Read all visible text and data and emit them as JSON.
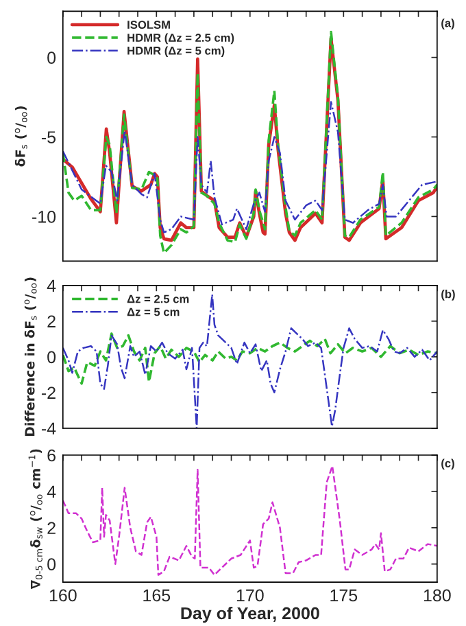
{
  "chart_data": [
    {
      "type": "line",
      "ylabel": "δF$_{s}$ ($^{o}$/$_{oo}$)",
      "annotations": [
        "(a)"
      ],
      "xlim": [
        160,
        180
      ],
      "ylim": [
        -12.8,
        2.9
      ],
      "xticks": [
        160,
        {
          "value": 161,
          "label": null
        },
        {
          "value": 162,
          "label": null
        },
        {
          "value": 163,
          "label": null
        },
        {
          "value": 164,
          "label": null
        },
        165,
        {
          "value": 166,
          "label": null
        },
        {
          "value": 167,
          "label": null
        },
        {
          "value": 168,
          "label": null
        },
        {
          "value": 169,
          "label": null
        },
        170,
        {
          "value": 171,
          "label": null
        },
        {
          "value": 172,
          "label": null
        },
        {
          "value": 173,
          "label": null
        },
        {
          "value": 174,
          "label": null
        },
        175,
        {
          "value": 176,
          "label": null
        },
        {
          "value": 177,
          "label": null
        },
        {
          "value": 178,
          "label": null
        },
        {
          "value": 179,
          "label": null
        },
        180
      ],
      "yticks": [
        -10,
        -5,
        0
      ],
      "tick_labels": "y",
      "legend": "top left",
      "grid": false,
      "series": [
        {
          "name": "ISOLSM",
          "color": "#d42a2a",
          "line_style": "solid",
          "x": [
            160,
            160.5,
            161,
            161.5,
            162,
            162.32,
            162.5,
            162.86,
            163.27,
            163.7,
            164.2,
            164.7,
            164.9,
            165.05,
            165.2,
            165.4,
            165.8,
            166.3,
            166.6,
            167.0,
            167.2,
            167.4,
            167.7,
            168.1,
            168.35,
            168.8,
            169.2,
            169.45,
            169.8,
            170.2,
            170.3,
            170.5,
            170.7,
            170.8,
            171.0,
            171.3,
            171.5,
            171.9,
            172.1,
            172.4,
            172.7,
            173.5,
            173.85,
            174.33,
            174.7,
            175.07,
            175.3,
            175.9,
            176.9,
            177.1,
            177.26,
            178.1,
            179.0,
            179.8,
            180
          ],
          "values": [
            -6.4,
            -6.9,
            -7.9,
            -8.9,
            -9.7,
            -4.5,
            -6.0,
            -10.4,
            -3.4,
            -8.1,
            -8.4,
            -8.0,
            -7.3,
            -7.5,
            -10.7,
            -11.4,
            -11.5,
            -10.4,
            -10.7,
            -10.7,
            -0.1,
            -8.4,
            -8.7,
            -9.0,
            -10.7,
            -11.3,
            -11.3,
            -10.4,
            -11.3,
            -10.0,
            -8.4,
            -9.8,
            -11.0,
            -11.1,
            -5.5,
            -3.0,
            -5.8,
            -9.8,
            -11.0,
            -11.5,
            -10.7,
            -9.8,
            -10.4,
            1.2,
            -2.7,
            -11.3,
            -11.5,
            -10.4,
            -9.5,
            -7.7,
            -11.4,
            -10.7,
            -9.0,
            -8.5,
            -8.1
          ]
        },
        {
          "name": "HDMR (Δz = 2.5 cm)",
          "color": "#30b830",
          "line_style": "dashed",
          "x": [
            160,
            160.3,
            160.6,
            161,
            161.5,
            162,
            162.32,
            162.5,
            162.86,
            163.27,
            163.7,
            164.2,
            164.6,
            164.9,
            165.05,
            165.2,
            165.4,
            165.8,
            166.3,
            166.6,
            167.0,
            167.2,
            167.4,
            167.7,
            168.1,
            168.35,
            168.8,
            169.2,
            169.45,
            169.8,
            170.2,
            170.3,
            170.5,
            170.8,
            171.0,
            171.3,
            171.5,
            171.9,
            172.1,
            172.4,
            172.7,
            173.5,
            173.85,
            174.33,
            174.7,
            175.07,
            175.3,
            175.9,
            176.9,
            177.1,
            177.26,
            178.1,
            179.0,
            179.8,
            180
          ],
          "values": [
            -6.0,
            -8.5,
            -9.0,
            -8.7,
            -9.6,
            -9.6,
            -5.0,
            -5.5,
            -9.8,
            -3.6,
            -8.2,
            -8.3,
            -7.2,
            -7.4,
            -7.6,
            -11.2,
            -12.3,
            -11.8,
            -10.8,
            -11.0,
            -10.6,
            -1.0,
            -8.5,
            -8.7,
            -9.2,
            -10.4,
            -11.5,
            -11.6,
            -10.5,
            -11.4,
            -9.8,
            -8.3,
            -9.6,
            -10.8,
            -5.2,
            -2.1,
            -5.5,
            -9.4,
            -10.9,
            -11.2,
            -10.4,
            -9.6,
            -10.2,
            1.6,
            -2.5,
            -11.2,
            -11.3,
            -10.2,
            -9.4,
            -7.2,
            -11.2,
            -10.4,
            -8.8,
            -8.3,
            -8.0
          ]
        },
        {
          "name": "HDMR (Δz = 5 cm)",
          "color": "#3535c0",
          "line_style": "dashdot",
          "x": [
            160,
            161,
            162,
            162.3,
            162.6,
            162.9,
            163.3,
            163.7,
            164.2,
            164.5,
            164.9,
            165.2,
            165.4,
            165.8,
            166.3,
            167.0,
            167.2,
            167.4,
            167.7,
            167.9,
            168.1,
            168.5,
            169.1,
            169.3,
            169.8,
            170.2,
            170.5,
            170.8,
            171.0,
            171.3,
            171.6,
            171.9,
            172.4,
            173.0,
            173.5,
            173.85,
            174.33,
            174.7,
            175.07,
            175.5,
            176.3,
            176.9,
            177.1,
            177.3,
            177.8,
            178.5,
            179.2,
            180
          ],
          "values": [
            -5.9,
            -8.3,
            -9.2,
            -6.8,
            -7.2,
            -9.0,
            -4.6,
            -8.0,
            -8.6,
            -8.8,
            -7.3,
            -10.2,
            -11.0,
            -10.8,
            -10.0,
            -10.2,
            -5.0,
            -8.0,
            -8.5,
            -6.5,
            -8.8,
            -10.5,
            -10.2,
            -9.5,
            -10.8,
            -9.2,
            -8.5,
            -9.7,
            -6.5,
            -5.0,
            -6.0,
            -9.0,
            -10.2,
            -9.3,
            -9.0,
            -9.6,
            -2.8,
            -4.7,
            -10.2,
            -10.4,
            -9.6,
            -9.2,
            -8.0,
            -10.0,
            -10.0,
            -9.0,
            -8.0,
            -7.8
          ]
        }
      ]
    },
    {
      "type": "line",
      "ylabel": "Difference in δF$_{s}$ ($^{o}$/$_{oo}$)",
      "annotations": [
        "(b)"
      ],
      "xlim": [
        160,
        180
      ],
      "ylim": [
        -4,
        4
      ],
      "xticks": [
        160,
        {
          "value": 161,
          "label": null
        },
        {
          "value": 162,
          "label": null
        },
        {
          "value": 163,
          "label": null
        },
        {
          "value": 164,
          "label": null
        },
        165,
        {
          "value": 166,
          "label": null
        },
        {
          "value": 167,
          "label": null
        },
        {
          "value": 168,
          "label": null
        },
        {
          "value": 169,
          "label": null
        },
        170,
        {
          "value": 171,
          "label": null
        },
        {
          "value": 172,
          "label": null
        },
        {
          "value": 173,
          "label": null
        },
        {
          "value": 174,
          "label": null
        },
        175,
        {
          "value": 176,
          "label": null
        },
        {
          "value": 177,
          "label": null
        },
        {
          "value": 178,
          "label": null
        },
        {
          "value": 179,
          "label": null
        },
        180
      ],
      "yticks": [
        -4,
        -2,
        0,
        2,
        4
      ],
      "tick_labels": "y",
      "legend": "top left",
      "grid": false,
      "series": [
        {
          "name": "Δz = 2.5 cm",
          "color": "#30b830",
          "line_style": "dashed",
          "x": [
            160,
            160.3,
            160.6,
            161.0,
            161.3,
            161.7,
            162.0,
            162.3,
            162.6,
            162.9,
            163.2,
            163.5,
            163.8,
            164.1,
            164.4,
            164.6,
            164.9,
            165.2,
            165.5,
            165.8,
            166.2,
            166.6,
            167.0,
            167.3,
            167.6,
            168.0,
            168.3,
            168.7,
            169.0,
            169.3,
            169.6,
            170.0,
            170.4,
            170.8,
            171.2,
            171.6,
            172.0,
            172.4,
            172.8,
            173.2,
            173.6,
            174.0,
            174.3,
            174.7,
            175.1,
            175.5,
            176.0,
            176.5,
            177.0,
            177.5,
            178.0,
            178.5,
            179.0,
            179.5,
            180
          ],
          "values": [
            0.1,
            -0.8,
            -0.6,
            -1.5,
            -0.3,
            -0.5,
            0.3,
            -0.2,
            1.3,
            0.5,
            0.6,
            1.2,
            0.3,
            -0.2,
            0.5,
            -1.4,
            0.2,
            0.6,
            -0.1,
            0.4,
            0.0,
            0.5,
            0.3,
            -0.3,
            0.1,
            -0.2,
            0.3,
            -0.1,
            0.0,
            -0.2,
            0.3,
            0.2,
            0.5,
            0.3,
            0.6,
            0.8,
            0.5,
            0.3,
            0.6,
            0.9,
            0.6,
            1.0,
            0.2,
            0.7,
            0.2,
            0.5,
            0.3,
            0.5,
            0.0,
            0.6,
            0.2,
            0.4,
            0.1,
            0.3,
            0.2
          ]
        },
        {
          "name": "Δz = 5 cm",
          "color": "#3535c0",
          "line_style": "dashdot",
          "x": [
            160,
            160.3,
            160.5,
            160.8,
            161.1,
            161.5,
            161.8,
            162.0,
            162.2,
            162.4,
            162.6,
            162.9,
            163.1,
            163.3,
            163.6,
            163.8,
            164.1,
            164.4,
            164.7,
            165.0,
            165.3,
            165.6,
            166.0,
            166.4,
            166.6,
            166.9,
            167.15,
            167.3,
            167.5,
            167.7,
            167.98,
            168.1,
            168.3,
            168.6,
            169.0,
            169.3,
            169.7,
            170.0,
            170.3,
            170.6,
            170.9,
            171.1,
            171.3,
            171.6,
            171.9,
            172.2,
            172.5,
            172.8,
            173.1,
            173.5,
            173.8,
            174.0,
            174.38,
            174.55,
            174.8,
            175.0,
            175.3,
            175.6,
            176.0,
            176.4,
            176.8,
            177.1,
            177.4,
            177.7,
            178.0,
            178.4,
            178.8,
            179.2,
            179.6,
            180
          ],
          "values": [
            0.5,
            -0.2,
            -0.9,
            0.3,
            0.5,
            0.6,
            0.3,
            -1.5,
            -1.8,
            -0.5,
            1.2,
            0.7,
            -0.6,
            -1.2,
            0.6,
            0.0,
            0.3,
            -1.0,
            0.6,
            0.3,
            0.8,
            0.2,
            -0.1,
            0.4,
            -0.7,
            0.5,
            -4.0,
            0.5,
            0.8,
            0.6,
            3.5,
            1.8,
            1.2,
            0.9,
            0.5,
            -0.4,
            0.8,
            0.2,
            0.7,
            -0.8,
            -0.2,
            -1.5,
            -2.0,
            -0.7,
            0.3,
            1.6,
            1.3,
            1.0,
            0.6,
            0.8,
            0.5,
            -1.0,
            -3.9,
            -3.0,
            -1.0,
            0.5,
            1.6,
            1.0,
            0.5,
            0.6,
            0.3,
            1.5,
            1.0,
            0.3,
            0.2,
            0.5,
            0.0,
            0.4,
            -0.2,
            0.3
          ]
        }
      ]
    },
    {
      "type": "line",
      "xlabel": "Day of Year, 2000",
      "ylabel": "∇$_{0-5 cm}$δ$_{sw}$ ($^{o}$/$_{oo}$ cm$^{−1}$)",
      "annotations": [
        "(c)"
      ],
      "xlim": [
        160,
        180
      ],
      "ylim": [
        -1,
        6
      ],
      "xticks": [
        160,
        {
          "value": 161,
          "label": null
        },
        {
          "value": 162,
          "label": null
        },
        {
          "value": 163,
          "label": null
        },
        {
          "value": 164,
          "label": null
        },
        165,
        {
          "value": 166,
          "label": null
        },
        {
          "value": 167,
          "label": null
        },
        {
          "value": 168,
          "label": null
        },
        {
          "value": 169,
          "label": null
        },
        170,
        {
          "value": 171,
          "label": null
        },
        {
          "value": 172,
          "label": null
        },
        {
          "value": 173,
          "label": null
        },
        {
          "value": 174,
          "label": null
        },
        175,
        {
          "value": 176,
          "label": null
        },
        {
          "value": 177,
          "label": null
        },
        {
          "value": 178,
          "label": null
        },
        {
          "value": 179,
          "label": null
        },
        180
      ],
      "yticks": [
        0,
        2,
        4,
        6
      ],
      "grid": false,
      "series": [
        {
          "color": "#d030d0",
          "line_style": "dashed",
          "x": [
            160,
            160.3,
            160.7,
            161.0,
            161.3,
            161.6,
            162.0,
            162.1,
            162.2,
            162.3,
            162.5,
            162.8,
            163.0,
            163.3,
            163.6,
            163.9,
            164.2,
            164.5,
            164.7,
            165.0,
            165.1,
            165.4,
            165.7,
            166.2,
            166.6,
            166.9,
            167.05,
            167.2,
            167.35,
            167.8,
            168.1,
            168.5,
            169.0,
            169.5,
            170.0,
            170.2,
            170.4,
            170.7,
            171.0,
            171.2,
            171.6,
            171.9,
            172.3,
            172.6,
            173.0,
            173.5,
            173.8,
            174.1,
            174.4,
            174.8,
            175.1,
            175.3,
            175.6,
            176.0,
            176.5,
            176.7,
            176.9,
            177.0,
            177.2,
            177.5,
            177.8,
            178.2,
            178.5,
            179.0,
            179.5,
            180
          ],
          "values": [
            3.5,
            2.8,
            2.8,
            2.5,
            1.8,
            1.2,
            1.3,
            4.2,
            1.5,
            2.7,
            2.4,
            0.0,
            1.5,
            4.2,
            2.0,
            0.7,
            0.5,
            2.3,
            2.6,
            1.5,
            -0.6,
            -0.4,
            0.4,
            0.2,
            1.0,
            0.4,
            0.3,
            5.2,
            -0.2,
            -0.2,
            -0.6,
            -0.2,
            0.3,
            0.5,
            1.3,
            -0.2,
            -0.1,
            2.2,
            2.5,
            3.4,
            2.0,
            -0.5,
            -0.5,
            0.1,
            0.2,
            0.5,
            0.5,
            4.5,
            5.4,
            2.4,
            -0.3,
            -0.3,
            0.8,
            0.5,
            0.8,
            1.1,
            0.8,
            1.7,
            -0.4,
            -0.3,
            0.3,
            0.3,
            0.9,
            0.7,
            1.1,
            1.0
          ]
        }
      ]
    }
  ]
}
